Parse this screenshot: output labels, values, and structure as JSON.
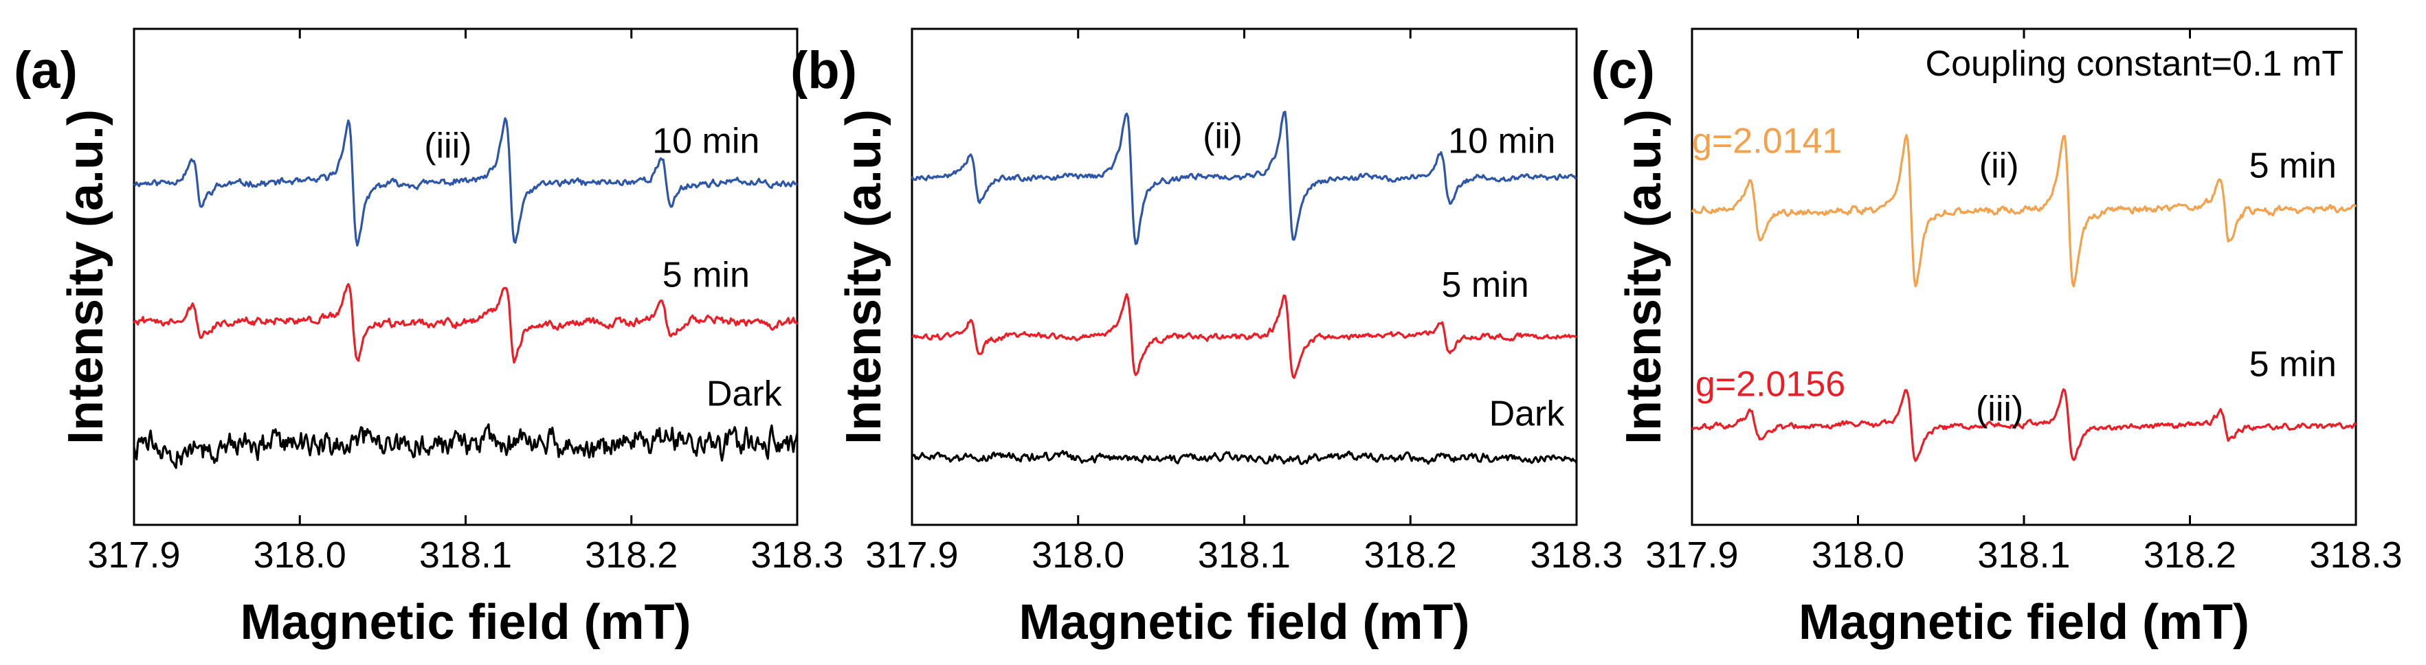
{
  "chart_data": [
    {
      "panel_label": "(a)",
      "type": "line",
      "title": "",
      "xlabel": "Magnetic field (mT)",
      "ylabel": "Intensity (a.u.)",
      "xlim": [
        317.9,
        318.3
      ],
      "x_ticks": [
        "317.9",
        "318.0",
        "318.1",
        "318.2",
        "318.3"
      ],
      "y_ticks": [],
      "series": [
        {
          "name": "10 min",
          "color": "#2e56a8",
          "baseline": 6.9,
          "amplitude": 1.0,
          "noise": 0.05,
          "label_x": 318.245,
          "label_y": 7.5
        },
        {
          "name": "5 min",
          "color": "#ee1c25",
          "baseline": 4.1,
          "amplitude": 0.62,
          "noise": 0.06,
          "label_x": 318.245,
          "label_y": 4.8
        },
        {
          "name": "Dark",
          "color": "#000000",
          "baseline": 1.6,
          "amplitude": 0.0,
          "noise": 0.18,
          "label_x": 318.268,
          "label_y": 2.4
        }
      ],
      "peaks_x": [
        317.938,
        318.032,
        318.127,
        318.221
      ],
      "peak_weights": [
        0.38,
        1.0,
        1.0,
        0.38
      ],
      "annotations": [
        {
          "text": "(iii)",
          "x": 318.075,
          "y": 7.4,
          "color": "#000000"
        }
      ]
    },
    {
      "panel_label": "(b)",
      "type": "line",
      "title": "",
      "xlabel": "Magnetic field (mT)",
      "ylabel": "Intensity (a.u.)",
      "xlim": [
        317.9,
        318.3
      ],
      "x_ticks": [
        "317.9",
        "318.0",
        "318.1",
        "318.2",
        "318.3"
      ],
      "y_ticks": [],
      "series": [
        {
          "name": "10 min",
          "color": "#2e56a8",
          "baseline": 7.0,
          "amplitude": 1.08,
          "noise": 0.04,
          "label_x": 318.255,
          "label_y": 7.5
        },
        {
          "name": "5 min",
          "color": "#ee1c25",
          "baseline": 3.8,
          "amplitude": 0.66,
          "noise": 0.04,
          "label_x": 318.245,
          "label_y": 4.6
        },
        {
          "name": "Dark",
          "color": "#000000",
          "baseline": 1.35,
          "amplitude": 0.0,
          "noise": 0.06,
          "label_x": 318.27,
          "label_y": 2.0
        }
      ],
      "peaks_x": [
        317.938,
        318.032,
        318.127,
        318.221
      ],
      "peak_weights": [
        0.38,
        1.0,
        1.0,
        0.38
      ],
      "annotations": [
        {
          "text": "(ii)",
          "x": 318.075,
          "y": 7.6,
          "color": "#000000"
        }
      ]
    },
    {
      "panel_label": "(c)",
      "type": "line",
      "title": "Coupling constant=0.1 mT",
      "xlabel": "Magnetic field (mT)",
      "ylabel": "Intensity (a.u.)",
      "xlim": [
        317.9,
        318.3
      ],
      "x_ticks": [
        "317.9",
        "318.0",
        "318.1",
        "318.2",
        "318.3"
      ],
      "y_ticks": [],
      "series": [
        {
          "name": "5 min",
          "color": "#f5a04a",
          "baseline": 6.35,
          "amplitude": 1.25,
          "noise": 0.05,
          "label_x": 318.262,
          "label_y": 7.0
        },
        {
          "name": "5 min",
          "color": "#ee1c25",
          "baseline": 2.0,
          "amplitude": 0.6,
          "noise": 0.04,
          "label_x": 318.262,
          "label_y": 3.0
        }
      ],
      "peaks_x": [
        317.938,
        318.032,
        318.127,
        318.221
      ],
      "peak_weights": [
        0.4,
        1.0,
        1.0,
        0.4
      ],
      "annotations": [
        {
          "text": "g=2.0141",
          "x": 317.9,
          "y": 7.5,
          "color": "#f5a04a"
        },
        {
          "text": "(ii)",
          "x": 318.073,
          "y": 7.0,
          "color": "#000000"
        },
        {
          "text": "g=2.0156",
          "x": 317.902,
          "y": 2.6,
          "color": "#ee1c25"
        },
        {
          "text": "(iii)",
          "x": 318.071,
          "y": 2.1,
          "color": "#000000"
        }
      ]
    }
  ]
}
